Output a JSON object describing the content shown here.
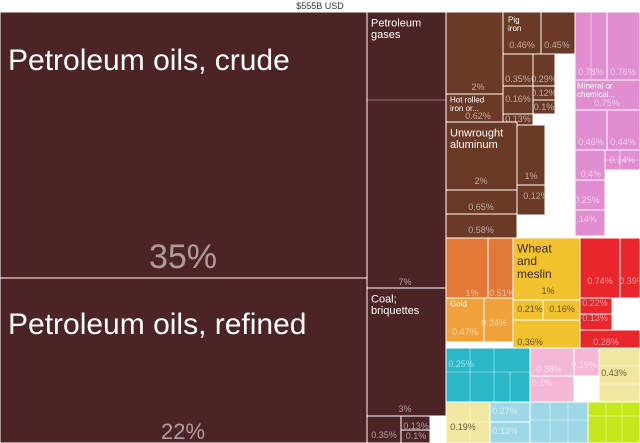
{
  "header": {
    "total_label": "$555B USD"
  },
  "chart_data": {
    "type": "treemap",
    "title": "$555B USD",
    "colors": {
      "mineral_products": "#4d2426",
      "metals": "#6b3a26",
      "chemicals": "#e08ecf",
      "vegetable_products": "#f2c12e",
      "animal_products": "#e27836",
      "precious_metals": "#f2a23a",
      "machines": "#e8262b",
      "textiles": "#2ab7c7",
      "plastics_rubber": "#f4b8d4",
      "transportation": "#f0e8a0",
      "instruments": "#9ed8e6",
      "wood_products": "#c5e81a",
      "misc": "#7f7f7f"
    },
    "tiles": [
      {
        "group": "mineral_products",
        "label": "Petroleum oils, crude",
        "share": "35%"
      },
      {
        "group": "mineral_products",
        "label": "Petroleum oils, refined",
        "share": "22%"
      },
      {
        "group": "mineral_products",
        "label": "Petroleum gases",
        "share": "7%"
      },
      {
        "group": "mineral_products",
        "label": "Coal; briquettes",
        "share": "3%"
      },
      {
        "group": "mineral_products",
        "label": "",
        "share": "0.35%"
      },
      {
        "group": "mineral_products",
        "label": "",
        "share": "0.13%"
      },
      {
        "group": "mineral_products",
        "label": "",
        "share": "0.1%"
      },
      {
        "group": "metals",
        "label": "",
        "share": "2%"
      },
      {
        "group": "metals",
        "label": "Pig iron",
        "share": "0.46%"
      },
      {
        "group": "metals",
        "label": "",
        "share": "0.45%"
      },
      {
        "group": "metals",
        "label": "",
        "share": "0.35%"
      },
      {
        "group": "metals",
        "label": "",
        "share": "0.29%"
      },
      {
        "group": "metals",
        "label": "Hot rolled iron or...",
        "share": "0.62%"
      },
      {
        "group": "metals",
        "label": "",
        "share": "0.12%"
      },
      {
        "group": "metals",
        "label": "",
        "share": "0.16%"
      },
      {
        "group": "metals",
        "label": "",
        "share": "0.1%"
      },
      {
        "group": "metals",
        "label": "",
        "share": "0.13%"
      },
      {
        "group": "metals",
        "label": "Unwrought aluminum",
        "share": "2%"
      },
      {
        "group": "metals",
        "label": "",
        "share": "1%"
      },
      {
        "group": "metals",
        "label": "",
        "share": "0.65%"
      },
      {
        "group": "metals",
        "label": "",
        "share": "0.58%"
      },
      {
        "group": "metals",
        "label": "",
        "share": "0.12%"
      },
      {
        "group": "chemicals",
        "label": "",
        "share": "0.78%"
      },
      {
        "group": "chemicals",
        "label": "",
        "share": "0.76%"
      },
      {
        "group": "chemicals",
        "label": "Mineral or chemical...",
        "share": "0.75%"
      },
      {
        "group": "chemicals",
        "label": "",
        "share": "0.46%"
      },
      {
        "group": "chemicals",
        "label": "",
        "share": "0.44%"
      },
      {
        "group": "chemicals",
        "label": "",
        "share": "0.4%"
      },
      {
        "group": "chemicals",
        "label": "",
        "share": "0.14%"
      },
      {
        "group": "chemicals",
        "label": "",
        "share": "0.25%"
      },
      {
        "group": "chemicals",
        "label": "",
        "share": "0.14%"
      },
      {
        "group": "animal_products",
        "label": "",
        "share": "1%"
      },
      {
        "group": "animal_products",
        "label": "",
        "share": "0.51%"
      },
      {
        "group": "precious_metals",
        "label": "Gold",
        "share": "0.47%"
      },
      {
        "group": "precious_metals",
        "label": "",
        "share": "0.24%"
      },
      {
        "group": "vegetable_products",
        "label": "Wheat and meslin",
        "share": "1%"
      },
      {
        "group": "vegetable_products",
        "label": "",
        "share": "0.21%"
      },
      {
        "group": "vegetable_products",
        "label": "",
        "share": "0.16%"
      },
      {
        "group": "vegetable_products",
        "label": "",
        "share": "0.36%"
      },
      {
        "group": "machines",
        "label": "",
        "share": "0.74%"
      },
      {
        "group": "machines",
        "label": "",
        "share": "0.39%"
      },
      {
        "group": "machines",
        "label": "",
        "share": "0.22%"
      },
      {
        "group": "machines",
        "label": "",
        "share": "0.13%"
      },
      {
        "group": "machines",
        "label": "",
        "share": "0.28%"
      },
      {
        "group": "textiles",
        "label": "",
        "share": "0.25%"
      },
      {
        "group": "plastics_rubber",
        "label": "",
        "share": "0.38%"
      },
      {
        "group": "plastics_rubber",
        "label": "",
        "share": "0.19%"
      },
      {
        "group": "plastics_rubber",
        "label": "",
        "share": "0.1%"
      },
      {
        "group": "transportation",
        "label": "",
        "share": "0.43%"
      },
      {
        "group": "transportation",
        "label": "",
        "share": "0.19%"
      },
      {
        "group": "instruments",
        "label": "",
        "share": "0.27%"
      },
      {
        "group": "instruments",
        "label": "",
        "share": "0.13%"
      },
      {
        "group": "instruments",
        "label": "",
        "share": "0.12%"
      },
      {
        "group": "wood_products",
        "label": "",
        "share": ""
      },
      {
        "group": "misc",
        "label": "",
        "share": ""
      }
    ]
  }
}
